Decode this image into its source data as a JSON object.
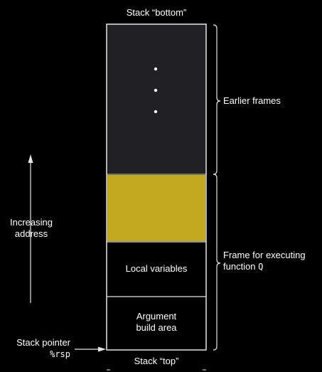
{
  "labels": {
    "stack_bottom": "Stack “bottom”",
    "stack_top": "Stack “top”",
    "earlier_frames": "Earlier frames",
    "frame_line1": "Frame for executing",
    "frame_line2_prefix": "function ",
    "frame_function_name": "Q",
    "local_variables": "Local variables",
    "argument_line1": "Argument",
    "argument_line2": "build area",
    "increasing_line1": "Increasing",
    "increasing_line2": "address",
    "stack_pointer_line1": "Stack pointer",
    "stack_pointer_register": "%rsp"
  },
  "colors": {
    "background": "#000000",
    "earlier_frames_fill": "#212124",
    "highlight_fill": "#c3a91d",
    "stroke": "#e6e6e6"
  }
}
